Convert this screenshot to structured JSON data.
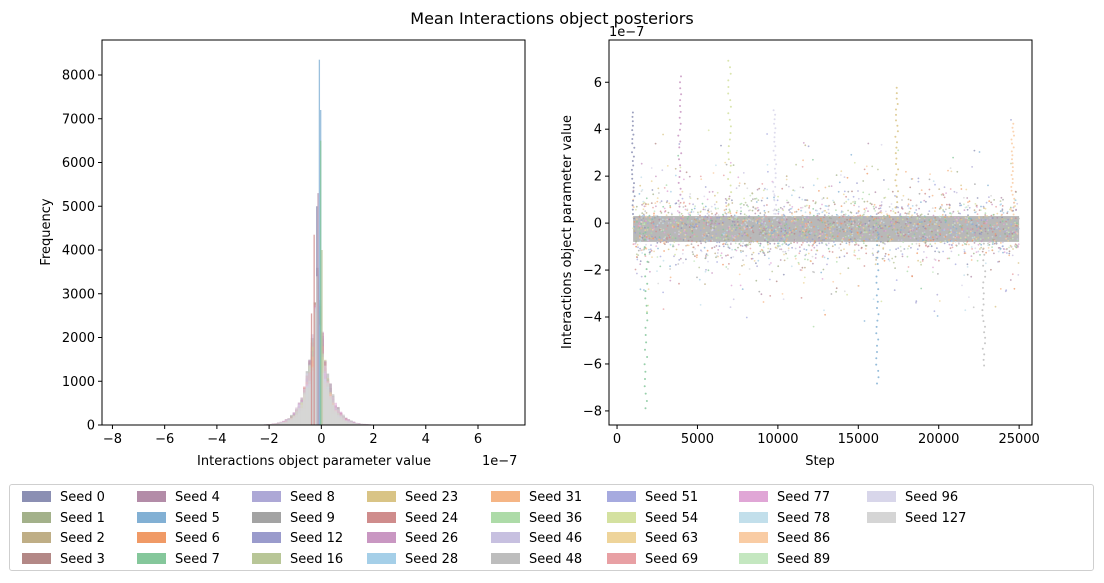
{
  "figure": {
    "title": "Mean Interactions object posteriors"
  },
  "chart_data": [
    {
      "type": "histogram",
      "xlabel": "Interactions object parameter value",
      "ylabel": "Frequency",
      "x_offset_label": "1e−7",
      "xlim": [
        -8.4,
        7.8
      ],
      "ylim": [
        0,
        8800
      ],
      "xticks": [
        -8,
        -6,
        -4,
        -2,
        0,
        2,
        4,
        6
      ],
      "xtick_labels": [
        "−8",
        "−6",
        "−4",
        "−2",
        "0",
        "2",
        "4",
        "6"
      ],
      "yticks": [
        0,
        1000,
        2000,
        3000,
        4000,
        5000,
        6000,
        7000,
        8000
      ],
      "ytick_labels": [
        "0",
        "1000",
        "2000",
        "3000",
        "4000",
        "5000",
        "6000",
        "7000",
        "8000"
      ],
      "peak_bins": [
        {
          "series": "Seed 0",
          "x": -0.2,
          "height": 5000
        },
        {
          "series": "Seed 4",
          "x": -0.15,
          "height": 5300
        },
        {
          "series": "Seed 5",
          "x": -0.1,
          "height": 8350
        },
        {
          "series": "Seed 5",
          "x": -0.05,
          "height": 7200
        },
        {
          "series": "Seed 24",
          "x": -0.3,
          "height": 4350
        },
        {
          "series": "Seed 24",
          "x": -0.4,
          "height": 2550
        },
        {
          "series": "Seed 7",
          "x": -0.05,
          "height": 6500
        },
        {
          "series": "Seed 16",
          "x": 0.0,
          "height": 4000
        },
        {
          "series": "Seed 127",
          "x": -0.2,
          "height": 3400
        }
      ]
    },
    {
      "type": "scatter",
      "xlabel": "Step",
      "ylabel": "Interactions object parameter value",
      "y_offset_label": "1e−7",
      "xlim": [
        -500,
        25800
      ],
      "ylim": [
        -8.6,
        7.8
      ],
      "xticks": [
        0,
        5000,
        10000,
        15000,
        20000,
        25000
      ],
      "xtick_labels": [
        "0",
        "5000",
        "10000",
        "15000",
        "20000",
        "25000"
      ],
      "yticks": [
        -8,
        -6,
        -4,
        -2,
        0,
        2,
        4,
        6
      ],
      "ytick_labels": [
        "−8",
        "−6",
        "−4",
        "−2",
        "0",
        "2",
        "4",
        "6"
      ],
      "step_range": [
        1000,
        25000
      ],
      "core_band": [
        -0.8,
        0.3
      ],
      "outlier_extremes": [
        {
          "x": 1000,
          "y": 4.7
        },
        {
          "x": 1800,
          "y": -7.8
        },
        {
          "x": 3900,
          "y": 6.3
        },
        {
          "x": 7000,
          "y": 7.0
        },
        {
          "x": 9800,
          "y": 4.8
        },
        {
          "x": 16200,
          "y": -6.7
        },
        {
          "x": 17400,
          "y": 5.8
        },
        {
          "x": 22800,
          "y": -5.9
        },
        {
          "x": 24600,
          "y": 4.2
        }
      ]
    }
  ],
  "legend": {
    "items": [
      {
        "label": "Seed 0",
        "color": "#8b8fb3"
      },
      {
        "label": "Seed 1",
        "color": "#a3b18a"
      },
      {
        "label": "Seed 2",
        "color": "#bfae86"
      },
      {
        "label": "Seed 3",
        "color": "#b38886"
      },
      {
        "label": "Seed 4",
        "color": "#b38ca8"
      },
      {
        "label": "Seed 5",
        "color": "#82b0d4"
      },
      {
        "label": "Seed 6",
        "color": "#f09a66"
      },
      {
        "label": "Seed 7",
        "color": "#85c79b"
      },
      {
        "label": "Seed 8",
        "color": "#ada8d6"
      },
      {
        "label": "Seed 9",
        "color": "#a3a3a3"
      },
      {
        "label": "Seed 12",
        "color": "#9a9bcc"
      },
      {
        "label": "Seed 16",
        "color": "#b8c697"
      },
      {
        "label": "Seed 23",
        "color": "#d9c486"
      },
      {
        "label": "Seed 24",
        "color": "#cf8c8c"
      },
      {
        "label": "Seed 26",
        "color": "#c997c2"
      },
      {
        "label": "Seed 28",
        "color": "#a5cfe8"
      },
      {
        "label": "Seed 31",
        "color": "#f5b585"
      },
      {
        "label": "Seed 36",
        "color": "#addba8"
      },
      {
        "label": "Seed 46",
        "color": "#c7c0e0"
      },
      {
        "label": "Seed 48",
        "color": "#bdbdbd"
      },
      {
        "label": "Seed 51",
        "color": "#a6aadf"
      },
      {
        "label": "Seed 54",
        "color": "#d4e1a0"
      },
      {
        "label": "Seed 63",
        "color": "#eed49a"
      },
      {
        "label": "Seed 69",
        "color": "#e8a0a4"
      },
      {
        "label": "Seed 77",
        "color": "#e0a6d6"
      },
      {
        "label": "Seed 78",
        "color": "#c2dfeb"
      },
      {
        "label": "Seed 86",
        "color": "#f9cca4"
      },
      {
        "label": "Seed 89",
        "color": "#c4e7c0"
      },
      {
        "label": "Seed 96",
        "color": "#d8d6ea"
      },
      {
        "label": "Seed 127",
        "color": "#d5d5d5"
      }
    ]
  }
}
